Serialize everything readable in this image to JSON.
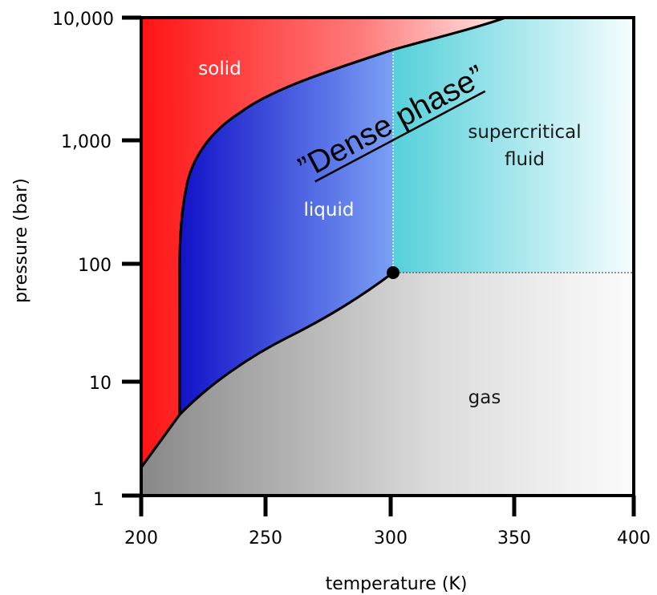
{
  "diagram": {
    "x_axis": {
      "title": "temperature (K)",
      "ticks": [
        "200",
        "250",
        "300",
        "350",
        "400"
      ]
    },
    "y_axis": {
      "title": "pressure (bar)",
      "scale": "log",
      "ticks": [
        "1",
        "10",
        "100",
        "1,000",
        "10,000"
      ]
    },
    "regions": {
      "solid": "solid",
      "liquid": "liquid",
      "supercritical": [
        "supercritical",
        "fluid"
      ],
      "gas": "gas"
    },
    "annotation": "”Dense phase”",
    "colors": {
      "solid": "#ff1a1a",
      "liquid": "#1a1ad6",
      "supercritical": "#5fd3dc",
      "gas": "#8c8c8c",
      "line": "#000000"
    }
  }
}
